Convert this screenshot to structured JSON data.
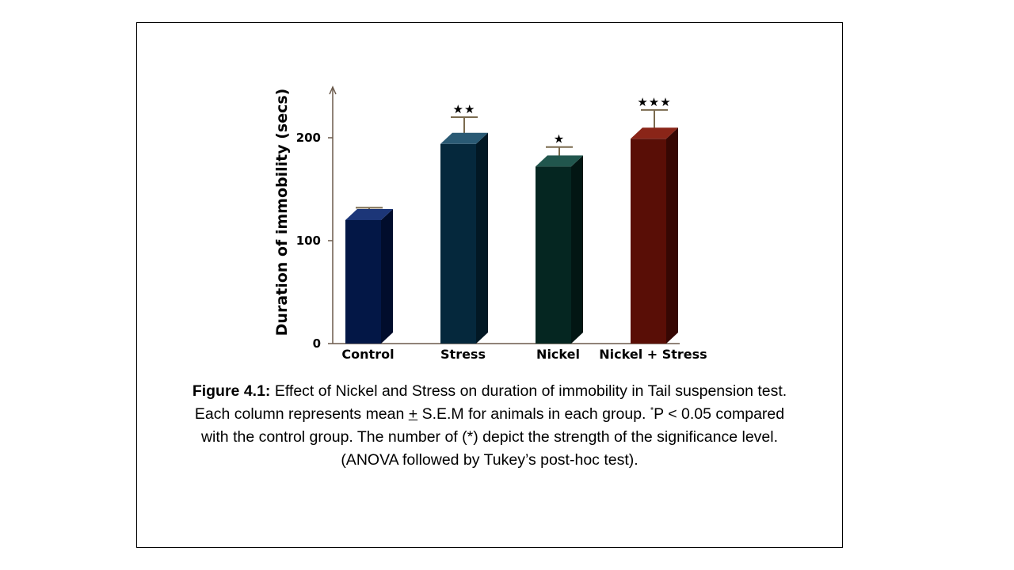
{
  "chart_data": {
    "type": "bar",
    "ylabel": "Duration of immobility (secs)",
    "xlabel": "",
    "categories": [
      "Control",
      "Stress",
      "Nickel",
      "Nickel + Stress"
    ],
    "values": [
      120,
      194,
      172,
      199
    ],
    "errors": [
      12,
      26,
      19,
      28
    ],
    "significance": [
      "",
      "**",
      "*",
      "***"
    ],
    "ylim": [
      0,
      250
    ],
    "yticks": [
      0,
      100,
      200
    ],
    "grid": false,
    "style": "3d-bar",
    "colors": [
      {
        "front": "#031746",
        "top": "#1c3678",
        "side": "#010d2c"
      },
      {
        "front": "#05283c",
        "top": "#2a5a74",
        "side": "#021824"
      },
      {
        "front": "#052621",
        "top": "#21564d",
        "side": "#021613"
      },
      {
        "front": "#590e06",
        "top": "#8a2518",
        "side": "#360703"
      }
    ],
    "axis_color": "#6b5a4c",
    "errorbar_color": "#7a6a4e"
  },
  "caption": {
    "label": "Figure 4.1:",
    "line1": " Effect of Nickel and Stress on duration of immobility in Tail suspension test.",
    "line2_a": "Each column represents mean ",
    "line2_pm": "+",
    "line2_b": " S.E.M for animals in each group. ",
    "line2_sup": "*",
    "line2_c": "P < 0.05 compared",
    "line3": "with the control group. The number of (*) depict the strength of the significance level.",
    "line4": "(ANOVA followed by Tukey’s post-hoc test)."
  }
}
